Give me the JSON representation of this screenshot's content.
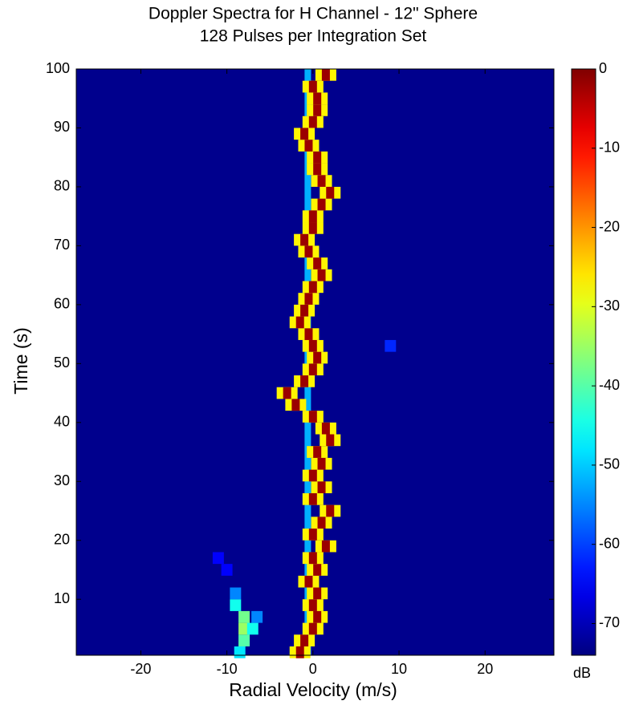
{
  "chart_data": {
    "type": "heatmap",
    "title": "Doppler Spectra for H Channel - 12\" Sphere",
    "subtitle": "128 Pulses per Integration Set",
    "xlabel": "Radial Velocity (m/s)",
    "ylabel": "Time (s)",
    "xlim": [
      -27.5,
      28
    ],
    "xticks": [
      -20,
      -10,
      0,
      10,
      20
    ],
    "ylim": [
      0.5,
      100
    ],
    "yticks": [
      10,
      20,
      30,
      40,
      50,
      60,
      70,
      80,
      90,
      100
    ],
    "clim": [
      -74,
      0
    ],
    "cticks": [
      0,
      -10,
      -20,
      -30,
      -40,
      -50,
      -60,
      -70
    ],
    "clabel": "dB",
    "background": -73,
    "stripe": {
      "x": -0.6,
      "value": -52
    },
    "ridge": {
      "peak": -2,
      "edge": -27,
      "y": [
        1,
        3,
        5,
        7,
        9,
        11,
        13,
        15,
        17,
        19,
        21,
        23,
        25,
        27,
        29,
        31,
        33,
        35,
        37,
        39,
        41,
        43,
        45,
        47,
        49,
        51,
        53,
        55,
        57,
        59,
        61,
        63,
        65,
        67,
        69,
        71,
        73,
        75,
        77,
        79,
        81,
        83,
        85,
        87,
        89,
        91,
        93,
        95,
        97,
        99
      ],
      "x": [
        -1.5,
        -1,
        0,
        0.5,
        0,
        0.5,
        -0.5,
        0.5,
        0,
        1.5,
        0,
        1,
        2,
        0,
        1,
        0,
        1,
        0.5,
        2,
        1.5,
        0,
        -2,
        -3,
        -1,
        0,
        0.5,
        0,
        -0.5,
        -1.5,
        -1,
        -0.5,
        0,
        1,
        0.5,
        -0.5,
        -1,
        0,
        0,
        1,
        2,
        1,
        0.5,
        0.5,
        -0.5,
        -1,
        0,
        0.5,
        0.5,
        0,
        1.5
      ]
    },
    "cells": {
      "x": [
        -8,
        -8,
        -8,
        -9,
        -7,
        -9,
        -8.5,
        -10,
        -11,
        -6.5,
        9
      ],
      "y": [
        3,
        5,
        7,
        9,
        5,
        11,
        1,
        15,
        17,
        7,
        53
      ],
      "values": [
        -40,
        -35,
        -38,
        -45,
        -45,
        -55,
        -48,
        -65,
        -65,
        -55,
        -62
      ]
    }
  }
}
